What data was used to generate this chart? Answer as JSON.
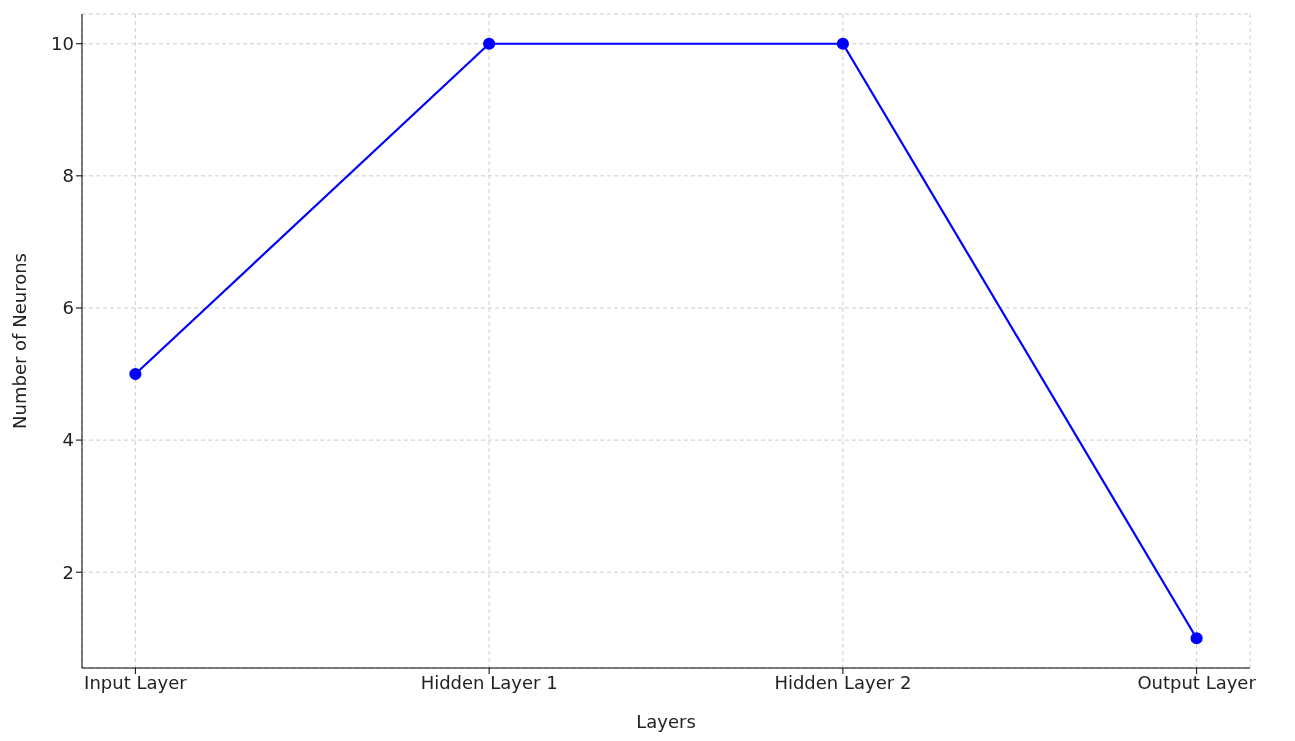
{
  "chart_data": {
    "type": "line",
    "xlabel": "Layers",
    "ylabel": "Number of Neurons",
    "categories": [
      "Input Layer",
      "Hidden Layer 1",
      "Hidden Layer 2",
      "Output Layer"
    ],
    "series": [
      {
        "color": "#0000ff",
        "values": [
          5,
          10,
          10,
          1
        ]
      }
    ],
    "ylim": [
      0.55,
      10.45
    ],
    "yticks": [
      2,
      4,
      6,
      8,
      10
    ],
    "grid": true,
    "marker": "circle",
    "line_style": "solid",
    "legend": false
  }
}
